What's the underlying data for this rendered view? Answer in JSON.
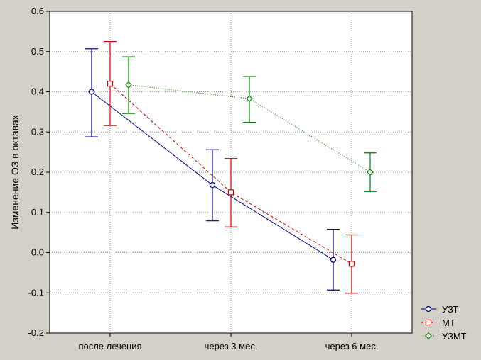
{
  "chart_data": {
    "type": "line",
    "ylabel": "Изменение ОЗ в октавах",
    "xlabel": "",
    "ylim": [
      -0.2,
      0.6
    ],
    "yticks": [
      "-0.2",
      "-0.1",
      "0.0",
      "0.1",
      "0.2",
      "0.3",
      "0.4",
      "0.5",
      "0.6"
    ],
    "categories": [
      "после лечения",
      "через 3 мес.",
      "через 6 мес."
    ],
    "grid": true,
    "legend_position": "bottom-right",
    "series": [
      {
        "name": "УЗТ",
        "color": "#00008b",
        "marker": "circle",
        "line": "solid",
        "values": [
          0.4,
          0.168,
          -0.018
        ],
        "err_low": [
          0.288,
          0.079,
          -0.093
        ],
        "err_high": [
          0.507,
          0.256,
          0.058
        ]
      },
      {
        "name": "МТ",
        "color": "#cc0000",
        "marker": "square",
        "line": "dashed",
        "values": [
          0.42,
          0.15,
          -0.028
        ],
        "err_low": [
          0.316,
          0.064,
          -0.101
        ],
        "err_high": [
          0.525,
          0.234,
          0.044
        ]
      },
      {
        "name": "УЗМТ",
        "color": "#008000",
        "marker": "diamond",
        "line": "dotted",
        "values": [
          0.417,
          0.383,
          0.2
        ],
        "err_low": [
          0.346,
          0.324,
          0.152
        ],
        "err_high": [
          0.487,
          0.438,
          0.248
        ]
      }
    ]
  }
}
